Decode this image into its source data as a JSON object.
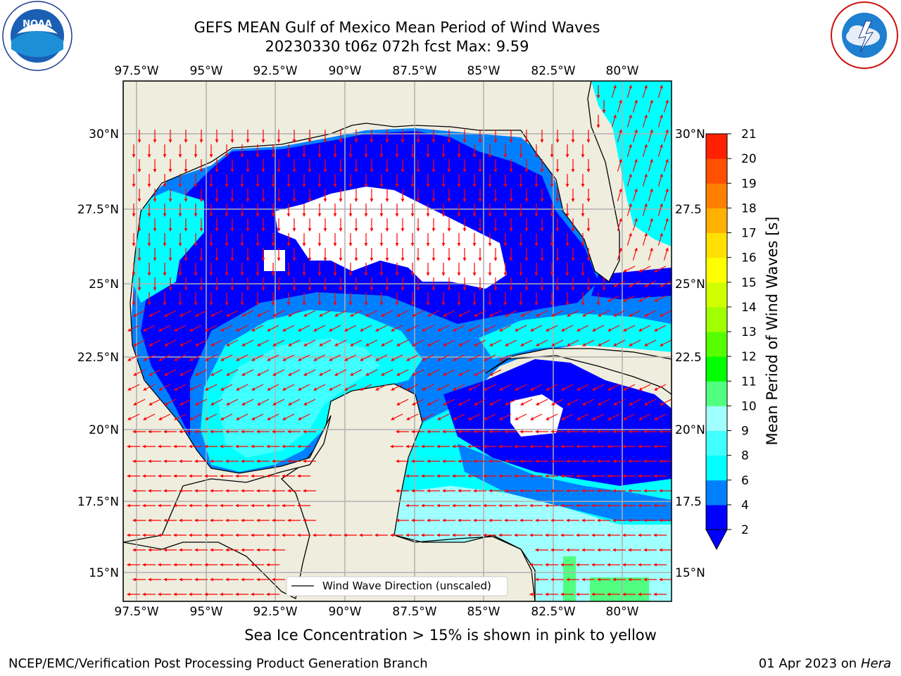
{
  "title_line1": "GEFS MEAN Gulf of Mexico Mean Period of Wind Waves",
  "title_line2": "20230330 t06z 072h fcst   Max: 9.59",
  "subtitle": "Sea Ice Concentration > 15% is shown in pink to yellow",
  "footer_left": "NCEP/EMC/Verification Post Processing Product Generation Branch",
  "footer_date": "01 Apr 2023 on ",
  "footer_machine": "Hera",
  "legend_label": "Wind Wave Direction (unscaled)",
  "colorbar_label": "Mean Period of Wind Waves [s]",
  "logos": {
    "left": "noaa-logo",
    "right": "nws-logo",
    "noaa_text": "NOAA"
  },
  "chart_data": {
    "type": "heatmap",
    "region": "Gulf of Mexico",
    "lon_ticks": [
      "97.5°W",
      "95°W",
      "92.5°W",
      "90°W",
      "87.5°W",
      "85°W",
      "82.5°W",
      "80°W"
    ],
    "lat_ticks_left": [
      "30°N",
      "27.5°N",
      "25°N",
      "22.5°N",
      "20°N",
      "17.5°N",
      "15°N"
    ],
    "lat_ticks_right": [
      "30°N",
      "27.5",
      "25°N",
      "22.5",
      "20°N",
      "17.5",
      "15°N"
    ],
    "colorbar": {
      "levels": [
        "2",
        "4",
        "6",
        "8",
        "9",
        "10",
        "11",
        "12",
        "13",
        "14",
        "15",
        "16",
        "17",
        "18",
        "19",
        "20",
        "21"
      ],
      "colors": [
        "#0000ff",
        "#0080ff",
        "#00ffff",
        "#40ffff",
        "#a0ffff",
        "#50ff80",
        "#00ff00",
        "#55ff00",
        "#a0ff00",
        "#d0ff00",
        "#ffff00",
        "#ffe000",
        "#ffb000",
        "#ff8000",
        "#ff5000",
        "#ff2000"
      ],
      "extend": "min"
    },
    "max": 9.59,
    "colors": {
      "land": "#efedde",
      "ocean_low": "#0000ff",
      "ocean_mid": "#0080ff",
      "ocean_cyan": "#00ffff",
      "ocean_light": "#a0ffff",
      "ocean_green": "#50ff80",
      "arrows": "#ff0000",
      "grid": "#b0b0b0"
    }
  }
}
